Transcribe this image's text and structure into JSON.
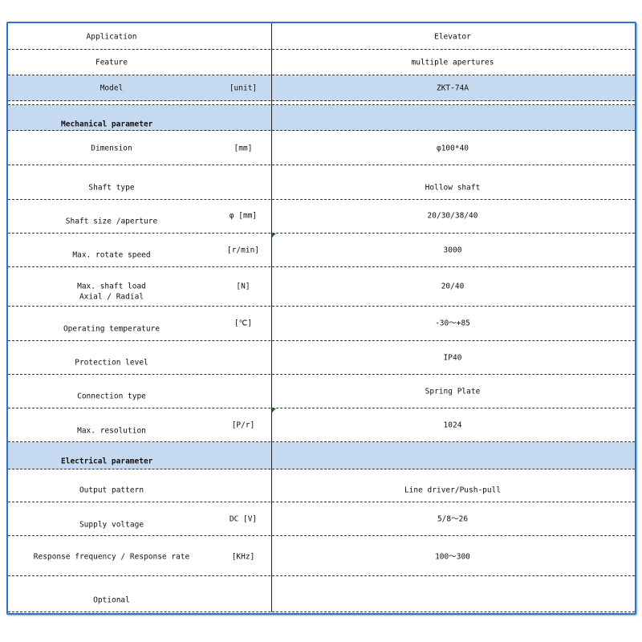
{
  "rows": [
    {
      "label": "Application",
      "value": "Elevator"
    },
    {
      "label": "Feature",
      "value": "multiple apertures"
    },
    {
      "label": "Model",
      "unit": "[unit]",
      "value": "ZKT-74A"
    },
    {
      "label": "Mechanical parameter",
      "section": true
    },
    {
      "label": "Dimension",
      "unit": "[mm]",
      "value": "φ100*40"
    },
    {
      "label": "Shaft type",
      "value": "Hollow shaft"
    },
    {
      "label": "Shaft size /aperture",
      "unit": "φ [mm]",
      "value": "20/30/38/40"
    },
    {
      "label": "Max. rotate speed",
      "unit": "[r/min]",
      "value": "3000"
    },
    {
      "label": "Max. shaft load",
      "label2": "Axial / Radial",
      "unit": "[N]",
      "value": "20/40"
    },
    {
      "label": "Operating temperature",
      "unit": "[℃]",
      "value": "-30～+85"
    },
    {
      "label": "Protection level",
      "value": "IP40"
    },
    {
      "label": "Connection type",
      "value": "Spring Plate"
    },
    {
      "label": "Max. resolution",
      "unit": "[P/r]",
      "value": "1024"
    },
    {
      "label": "Electrical parameter",
      "section": true
    },
    {
      "label": "Output pattern",
      "value": "Line driver/Push-pull"
    },
    {
      "label": "Supply voltage",
      "unit": "DC [V]",
      "value": "5/8～26"
    },
    {
      "label": "Response frequency / Response rate",
      "unit": "[KHz]",
      "value": "100～300"
    },
    {
      "label": "Optional",
      "value": ""
    }
  ],
  "colors": {
    "section_bg": "#c5d9f1",
    "border": "#2f6fd1"
  }
}
